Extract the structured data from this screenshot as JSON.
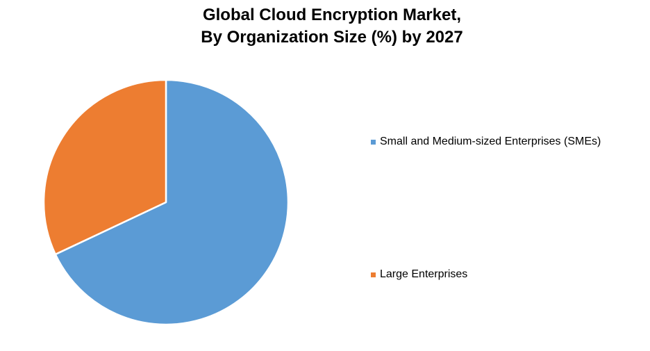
{
  "chart_data": {
    "type": "pie",
    "title": [
      "Global Cloud Encryption Market,",
      "By Organization Size (%) by 2027"
    ],
    "series": [
      {
        "name": "Small and Medium-sized Enterprises (SMEs)",
        "value": 68,
        "color": "#5B9BD5"
      },
      {
        "name": "Large Enterprises",
        "value": 32,
        "color": "#ED7D31"
      }
    ],
    "start_angle_deg": 0,
    "direction": "clockwise",
    "legend_position": "right",
    "slice_border_color": "#FFFFFF"
  }
}
